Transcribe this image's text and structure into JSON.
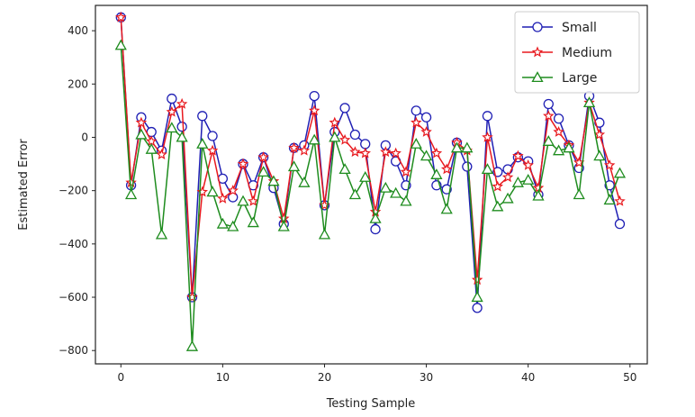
{
  "chart_data": {
    "type": "line",
    "title": "",
    "xlabel": "Testing Sample",
    "ylabel": "Estimated Error",
    "xlim": [
      -2.5,
      51.7
    ],
    "ylim": [
      -850,
      495
    ],
    "xticks": [
      0,
      10,
      20,
      30,
      40,
      50
    ],
    "yticks": [
      400,
      200,
      0,
      -200,
      -400,
      -600,
      -800
    ],
    "grid": false,
    "legend_position": "upper right",
    "x": [
      0,
      1,
      2,
      3,
      4,
      5,
      6,
      7,
      8,
      9,
      10,
      11,
      12,
      13,
      14,
      15,
      16,
      17,
      18,
      19,
      20,
      21,
      22,
      23,
      24,
      25,
      26,
      27,
      28,
      29,
      30,
      31,
      32,
      33,
      34,
      35,
      36,
      37,
      38,
      39,
      40,
      41,
      42,
      43,
      44,
      45,
      46,
      47,
      48,
      49
    ],
    "series": [
      {
        "name": "Small",
        "color": "#1f1fb4",
        "marker": "circle",
        "values": [
          450,
          -180,
          75,
          20,
          -50,
          145,
          40,
          -600,
          80,
          5,
          -155,
          -225,
          -100,
          -180,
          -75,
          -190,
          -325,
          -40,
          -30,
          155,
          -255,
          20,
          110,
          10,
          -25,
          -345,
          -30,
          -90,
          -180,
          100,
          75,
          -180,
          -195,
          -20,
          -110,
          -640,
          80,
          -130,
          -120,
          -75,
          -90,
          -215,
          125,
          70,
          -30,
          -115,
          155,
          55,
          -180,
          -325
        ]
      },
      {
        "name": "Medium",
        "color": "#e8191e",
        "marker": "star",
        "values": [
          450,
          -170,
          55,
          -15,
          -65,
          95,
          125,
          -600,
          -205,
          -50,
          -230,
          -200,
          -100,
          -240,
          -75,
          -165,
          -305,
          -40,
          -50,
          100,
          -255,
          55,
          -10,
          -55,
          -60,
          -280,
          -55,
          -60,
          -130,
          55,
          20,
          -60,
          -120,
          -20,
          -50,
          -535,
          0,
          -185,
          -150,
          -70,
          -105,
          -190,
          80,
          20,
          -30,
          -95,
          130,
          10,
          -105,
          -240
        ]
      },
      {
        "name": "Large",
        "color": "#1e8c1e",
        "marker": "triangle",
        "values": [
          345,
          -215,
          10,
          -45,
          -365,
          35,
          0,
          -785,
          -25,
          -205,
          -325,
          -335,
          -240,
          -320,
          -130,
          -165,
          -335,
          -110,
          -170,
          -10,
          -365,
          0,
          -120,
          -215,
          -150,
          -305,
          -190,
          -210,
          -240,
          -25,
          -70,
          -140,
          -270,
          -40,
          -40,
          -600,
          -120,
          -260,
          -230,
          -170,
          -160,
          -220,
          -15,
          -50,
          -40,
          -215,
          130,
          -70,
          -235,
          -135
        ]
      }
    ]
  }
}
